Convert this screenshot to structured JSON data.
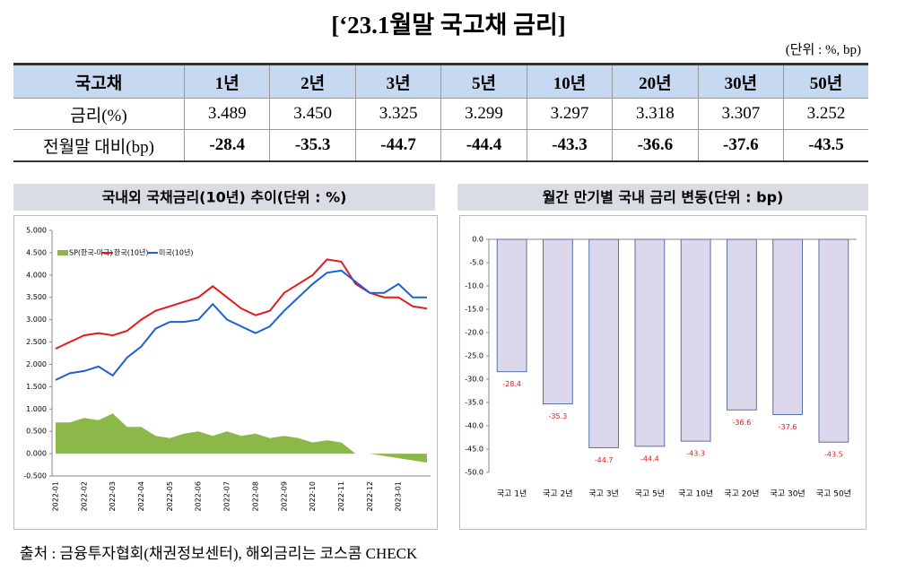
{
  "title": "[‘23.1월말 국고채 금리]",
  "unit": "(단위 : %, bp)",
  "table": {
    "header": [
      "국고채",
      "1년",
      "2년",
      "3년",
      "5년",
      "10년",
      "20년",
      "30년",
      "50년"
    ],
    "rows": [
      [
        "금리(%)",
        "3.489",
        "3.450",
        "3.325",
        "3.299",
        "3.297",
        "3.318",
        "3.307",
        "3.252"
      ],
      [
        "전월말 대비(bp)",
        "-28.4",
        "-35.3",
        "-44.7",
        "-44.4",
        "-43.3",
        "-36.6",
        "-37.6",
        "-43.5"
      ]
    ]
  },
  "chart_data": [
    {
      "type": "line",
      "title": "국내외 국채금리(10년) 추이(단위 : %)",
      "categories": [
        "2022-01",
        null,
        "2022-02",
        null,
        "2022-03",
        null,
        "2022-04",
        null,
        "2022-05",
        null,
        "2022-06",
        null,
        "2022-07",
        null,
        "2022-08",
        null,
        "2022-09",
        null,
        "2022-10",
        null,
        "2022-11",
        null,
        "2022-12",
        null,
        "2023-01",
        null,
        null
      ],
      "series": [
        {
          "name": "SP(한국-미국)",
          "type": "area",
          "color": "#8cb84a",
          "values": [
            0.7,
            0.7,
            0.8,
            0.75,
            0.9,
            0.6,
            0.6,
            0.4,
            0.35,
            0.45,
            0.5,
            0.4,
            0.5,
            0.4,
            0.45,
            0.35,
            0.4,
            0.35,
            0.25,
            0.3,
            0.25,
            0.0,
            0.0,
            -0.05,
            -0.1,
            -0.15,
            -0.2
          ]
        },
        {
          "name": "한국(10년)",
          "type": "line",
          "color": "#e31a1c",
          "values": [
            2.35,
            2.5,
            2.65,
            2.7,
            2.65,
            2.75,
            3.0,
            3.2,
            3.3,
            3.4,
            3.5,
            3.75,
            3.5,
            3.25,
            3.1,
            3.2,
            3.6,
            3.8,
            4.0,
            4.35,
            4.3,
            3.8,
            3.6,
            3.5,
            3.5,
            3.3,
            3.25
          ]
        },
        {
          "name": "미국(10년)",
          "type": "line",
          "color": "#1f5fd4",
          "values": [
            1.65,
            1.8,
            1.85,
            1.95,
            1.75,
            2.15,
            2.4,
            2.8,
            2.95,
            2.95,
            3.0,
            3.35,
            3.0,
            2.85,
            2.7,
            2.85,
            3.2,
            3.5,
            3.8,
            4.05,
            4.1,
            3.85,
            3.6,
            3.6,
            3.8,
            3.5,
            3.5
          ]
        }
      ],
      "ylim": [
        -0.5,
        5.0
      ],
      "yticks": [
        {
          "value": 5.0,
          "label": "5.000"
        },
        {
          "value": 4.5,
          "label": "4.500"
        },
        {
          "value": 4.0,
          "label": "4.000"
        },
        {
          "value": 3.5,
          "label": "3.500"
        },
        {
          "value": 3.0,
          "label": "3.000"
        },
        {
          "value": 2.5,
          "label": "2.500"
        },
        {
          "value": 2.0,
          "label": "2.000"
        },
        {
          "value": 1.5,
          "label": "1.500"
        },
        {
          "value": 1.0,
          "label": "1.000"
        },
        {
          "value": 0.5,
          "label": "0.500"
        },
        {
          "value": 0,
          "label": "0.000"
        },
        {
          "value": -0.5,
          "label": "-0.500"
        }
      ],
      "legend": "top-left"
    },
    {
      "type": "bar",
      "title": "월간 만기별 국내 금리 변동(단위 : bp)",
      "categories": [
        "국고 1년",
        "국고 2년",
        "국고 3년",
        "국고 5년",
        "국고 10년",
        "국고 20년",
        "국고 30년",
        "국고 50년"
      ],
      "values": [
        -28.4,
        -35.3,
        -44.7,
        -44.4,
        -43.3,
        -36.6,
        -37.6,
        -43.5
      ],
      "color": "#dcd8ec",
      "ylim": [
        -50,
        0
      ],
      "yticks": [
        {
          "value": 0,
          "label": "0.0"
        },
        {
          "value": -5,
          "label": "-5.0"
        },
        {
          "value": -10,
          "label": "-10.0"
        },
        {
          "value": -15,
          "label": "-15.0"
        },
        {
          "value": -20,
          "label": "-20.0"
        },
        {
          "value": -25,
          "label": "-25.0"
        },
        {
          "value": -30,
          "label": "-30.0"
        },
        {
          "value": -35,
          "label": "-35.0"
        },
        {
          "value": -40,
          "label": "-40.0"
        },
        {
          "value": -45,
          "label": "-45.0"
        },
        {
          "value": -50,
          "label": "-50.0"
        }
      ]
    }
  ],
  "source": "출처 : 금융투자협회(채권정보센터), 해외금리는 코스콤 CHECK"
}
